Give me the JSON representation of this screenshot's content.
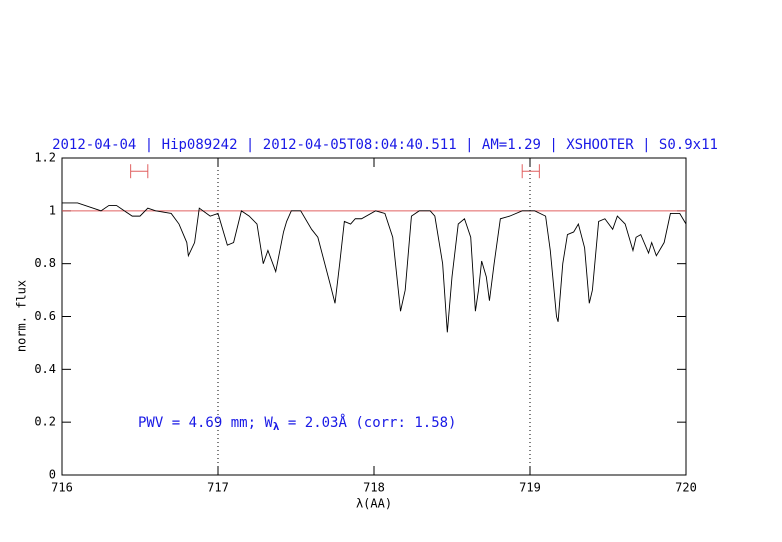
{
  "chart_data": {
    "type": "line",
    "title": "2012-04-04 | Hip089242 | 2012-04-05T08:04:40.511 | AM=1.29 | XSHOOTER | S0.9x11",
    "xlabel": "λ(AA)",
    "ylabel": "norm. flux",
    "annotation": [
      "PWV = 4.69 mm; W",
      "λ",
      " = 2.03Å (corr: 1.58)"
    ],
    "x": [
      716.0,
      716.1,
      716.2,
      716.25,
      716.3,
      716.35,
      716.4,
      716.45,
      716.5,
      716.55,
      716.6,
      716.7,
      716.75,
      716.8,
      716.81,
      716.85,
      716.88,
      716.95,
      717.0,
      717.06,
      717.1,
      717.15,
      717.2,
      717.25,
      717.29,
      717.32,
      717.37,
      717.42,
      717.44,
      717.47,
      717.53,
      717.6,
      717.64,
      717.72,
      717.75,
      717.78,
      717.81,
      717.85,
      717.88,
      717.92,
      718.01,
      718.07,
      718.12,
      718.17,
      718.2,
      718.24,
      718.29,
      718.36,
      718.39,
      718.44,
      718.47,
      718.5,
      718.54,
      718.58,
      718.62,
      718.65,
      718.67,
      718.69,
      718.72,
      718.74,
      718.77,
      718.81,
      718.87,
      718.95,
      719.03,
      719.1,
      719.13,
      719.17,
      719.18,
      719.21,
      719.24,
      719.28,
      719.31,
      719.35,
      719.38,
      719.4,
      719.44,
      719.48,
      719.53,
      719.56,
      719.61,
      719.66,
      719.68,
      719.71,
      719.76,
      719.78,
      719.81,
      719.86,
      719.9,
      719.96,
      720.0
    ],
    "values": [
      1.03,
      1.03,
      1.01,
      1.0,
      1.02,
      1.02,
      1.0,
      0.98,
      0.98,
      1.01,
      1.0,
      0.99,
      0.95,
      0.88,
      0.83,
      0.88,
      1.01,
      0.98,
      0.99,
      0.87,
      0.88,
      1.0,
      0.98,
      0.95,
      0.8,
      0.85,
      0.77,
      0.92,
      0.96,
      1.0,
      1.0,
      0.93,
      0.9,
      0.72,
      0.65,
      0.8,
      0.96,
      0.95,
      0.97,
      0.97,
      1.0,
      0.99,
      0.9,
      0.62,
      0.7,
      0.98,
      1.0,
      1.0,
      0.98,
      0.8,
      0.54,
      0.75,
      0.95,
      0.97,
      0.9,
      0.62,
      0.7,
      0.81,
      0.75,
      0.66,
      0.8,
      0.97,
      0.98,
      1.0,
      1.0,
      0.98,
      0.85,
      0.6,
      0.58,
      0.8,
      0.91,
      0.92,
      0.95,
      0.86,
      0.65,
      0.7,
      0.96,
      0.97,
      0.93,
      0.98,
      0.95,
      0.85,
      0.9,
      0.91,
      0.84,
      0.88,
      0.83,
      0.88,
      0.99,
      0.99,
      0.95
    ],
    "color": "#000000",
    "hline": 1,
    "hline_color": "#e06060",
    "vlines": [
      717,
      719
    ],
    "ranges": [
      [
        716.44,
        716.55
      ],
      [
        718.95,
        719.06
      ]
    ],
    "range_y": 1.15,
    "range_color": "#e06060",
    "xlim": [
      716,
      720
    ],
    "xticks": [
      716,
      717,
      718,
      719,
      720
    ],
    "ylim": [
      0,
      1.2
    ],
    "yticks": [
      0,
      0.2,
      0.4,
      0.6,
      0.8,
      1,
      1.2
    ],
    "text_color": "#1a1ae6"
  }
}
